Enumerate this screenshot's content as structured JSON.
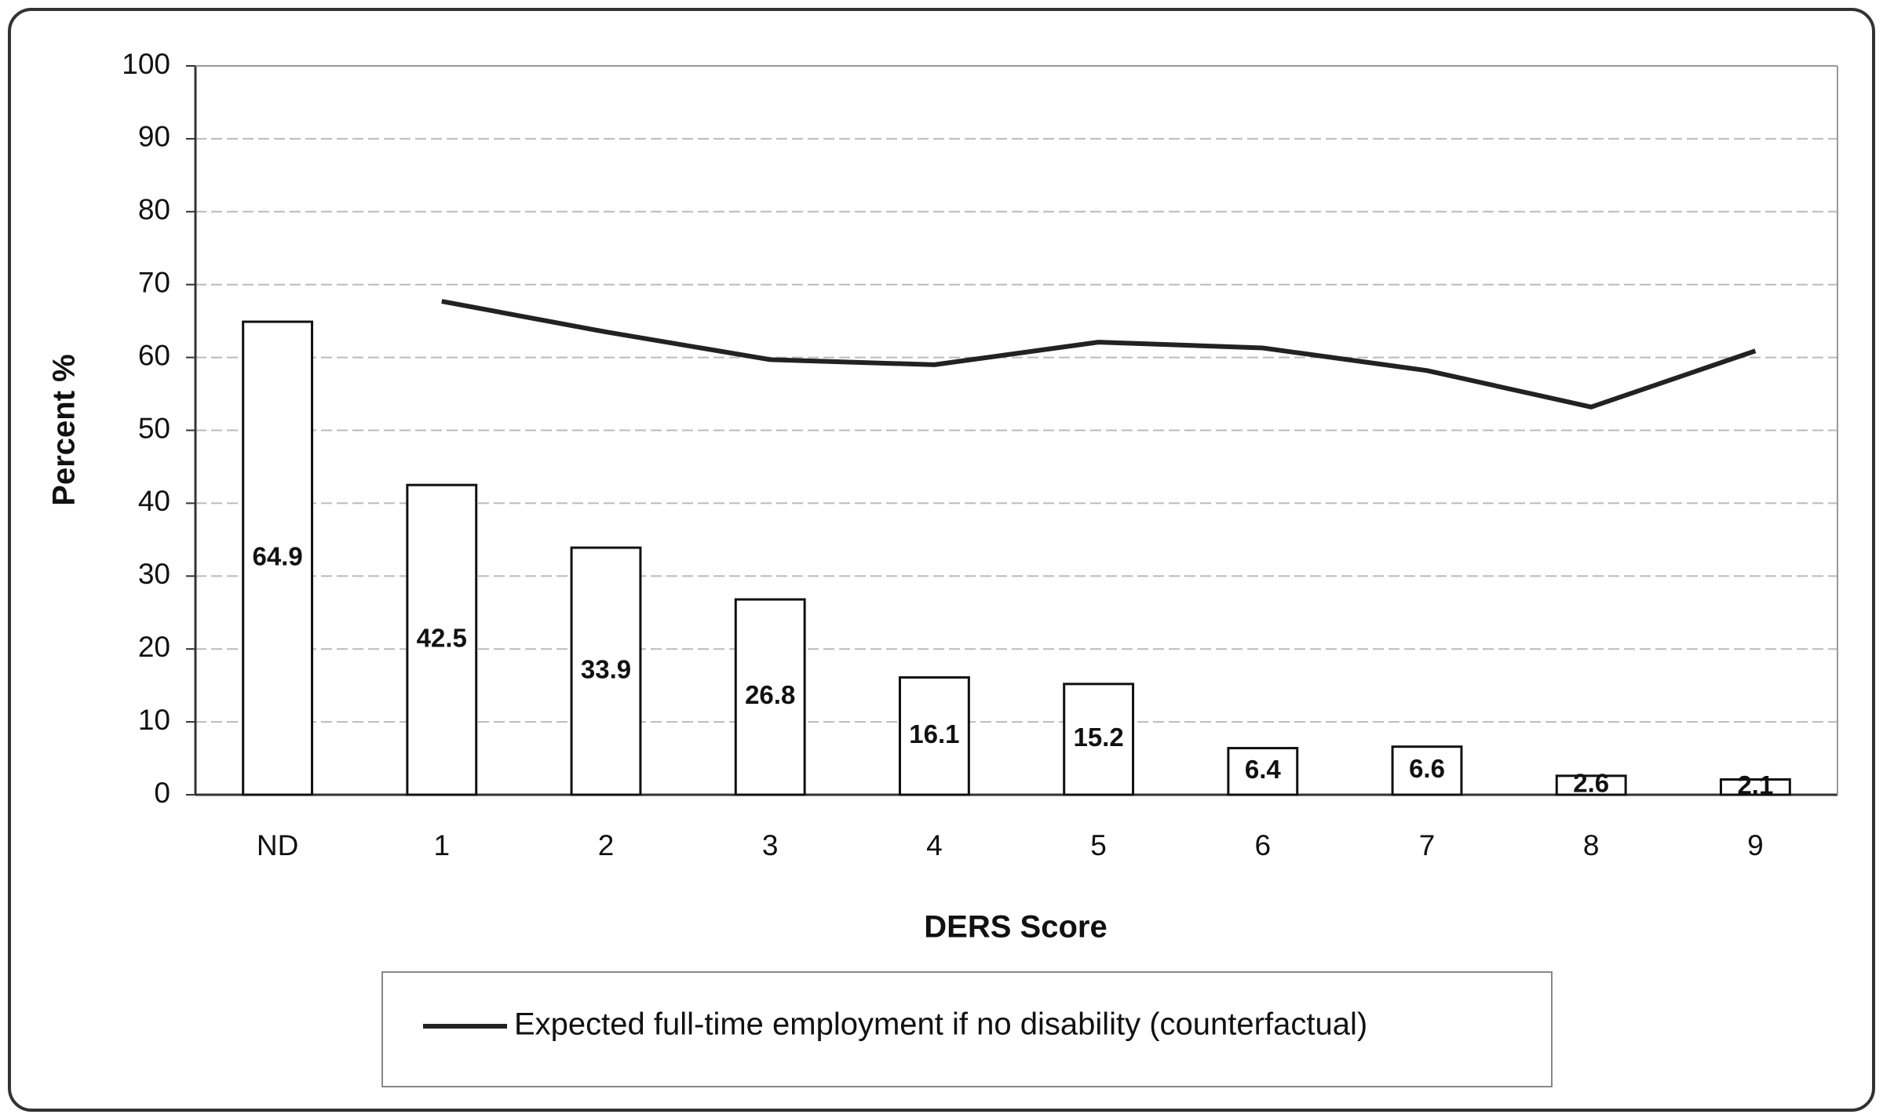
{
  "chart_data": {
    "type": "bar",
    "x_label": "DERS Score",
    "y_label": "Percent %",
    "categories": [
      "ND",
      "1",
      "2",
      "3",
      "4",
      "5",
      "6",
      "7",
      "8",
      "9"
    ],
    "series": [
      {
        "type": "bar",
        "color": "#ffffff",
        "values": [
          64.9,
          42.5,
          33.9,
          26.8,
          16.1,
          15.2,
          6.4,
          6.6,
          2.6,
          2.1
        ]
      },
      {
        "type": "line",
        "name": "Expected full-time employment if no disability (counterfactual)",
        "color": "#222222",
        "values": [
          null,
          67.7,
          63.5,
          59.7,
          59.0,
          62.1,
          61.3,
          58.2,
          53.2,
          60.9
        ]
      }
    ],
    "ylim": [
      0,
      100
    ],
    "yticks": [
      0,
      10,
      20,
      30,
      40,
      50,
      60,
      70,
      80,
      90,
      100
    ],
    "grid": true,
    "legend": "bottom"
  }
}
